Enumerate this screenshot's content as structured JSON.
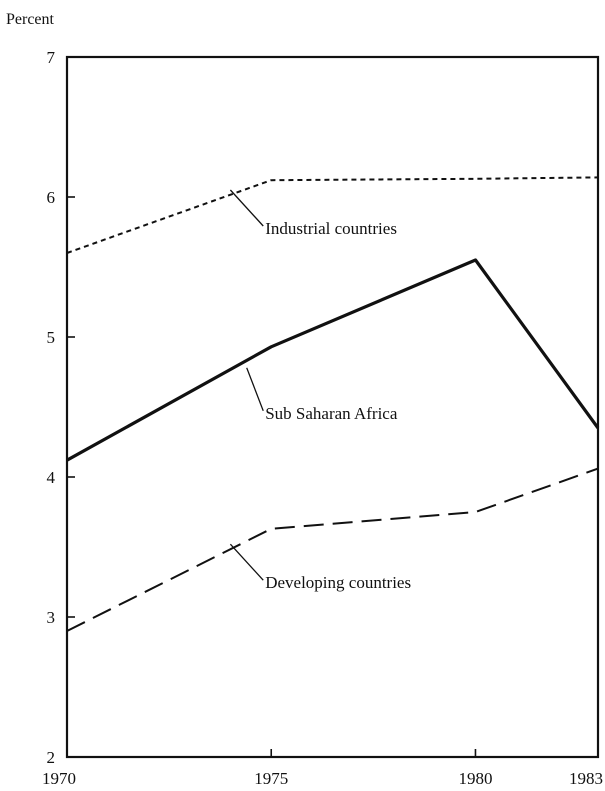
{
  "chart_data": {
    "type": "line",
    "title": "",
    "ylabel": "Percent",
    "xlabel": "",
    "xlim": [
      1970,
      1983
    ],
    "ylim": [
      2,
      7
    ],
    "x_ticks": [
      1970,
      1975,
      1980,
      1983
    ],
    "y_ticks": [
      2,
      3,
      4,
      5,
      6,
      7
    ],
    "x_tick_labels": [
      "1970",
      "1975",
      "1980",
      "1983"
    ],
    "y_tick_labels": [
      "2",
      "3",
      "4",
      "5",
      "6",
      "7"
    ],
    "grid": false,
    "legend": "none",
    "series": [
      {
        "name": "Industrial countries",
        "style": "dotted",
        "color": "#111111",
        "x": [
          1970,
          1975,
          1980,
          1983
        ],
        "y": [
          5.6,
          6.12,
          6.13,
          6.14
        ]
      },
      {
        "name": "Sub Saharan Africa",
        "style": "solid",
        "color": "#111111",
        "x": [
          1970,
          1975,
          1980,
          1983
        ],
        "y": [
          4.12,
          4.93,
          5.55,
          4.35
        ]
      },
      {
        "name": "Developing countries",
        "style": "dashed",
        "color": "#111111",
        "x": [
          1970,
          1975,
          1980,
          1983
        ],
        "y": [
          2.9,
          3.63,
          3.75,
          4.06
        ]
      }
    ],
    "annotations": [
      {
        "series": 0,
        "text": "Industrial countries",
        "point": [
          1974,
          6.05
        ],
        "text_at": [
          1975,
          5.75
        ]
      },
      {
        "series": 1,
        "text": "Sub Saharan Africa",
        "point": [
          1974.4,
          4.78
        ],
        "text_at": [
          1975,
          4.43
        ]
      },
      {
        "series": 2,
        "text": "Developing countries",
        "point": [
          1974,
          3.52
        ],
        "text_at": [
          1975,
          3.22
        ]
      }
    ]
  }
}
